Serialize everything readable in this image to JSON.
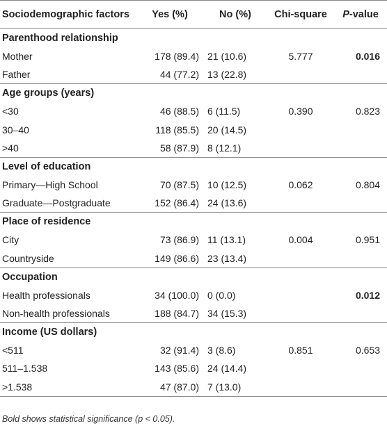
{
  "header": {
    "factor": "Sociodemographic factors",
    "yes": "Yes (%)",
    "no": "No (%)",
    "chi": "Chi-square",
    "p_letter": "P",
    "p_rest": "-value"
  },
  "groups": {
    "parenthood": {
      "title": "Parenthood relationship",
      "rows": [
        {
          "label": "Mother",
          "yes": "178 (89.4)",
          "no": "21 (10.6)",
          "chi": "5.777",
          "p": "0.016"
        },
        {
          "label": "Father",
          "yes": "44 (77.2)",
          "no": "13 (22.8)"
        }
      ]
    },
    "age": {
      "title": "Age groups (years)",
      "rows": [
        {
          "label": "<30",
          "yes": "46 (88.5)",
          "no": "6 (11.5)",
          "chi": "0.390",
          "p": "0.823"
        },
        {
          "label": "30–40",
          "yes": "118 (85.5)",
          "no": "20 (14.5)"
        },
        {
          "label": ">40",
          "yes": "58 (87.9)",
          "no": "8 (12.1)"
        }
      ]
    },
    "education": {
      "title": "Level of education",
      "rows": [
        {
          "label": "Primary—High School",
          "yes": "70 (87.5)",
          "no": "10 (12.5)",
          "chi": "0.062",
          "p": "0.804"
        },
        {
          "label": "Graduate—Postgraduate",
          "yes": "152 (86.4)",
          "no": "24 (13.6)"
        }
      ]
    },
    "residence": {
      "title": "Place of residence",
      "rows": [
        {
          "label": "City",
          "yes": "73 (86.9)",
          "no": "11 (13.1)",
          "chi": "0.004",
          "p": "0.951"
        },
        {
          "label": "Countryside",
          "yes": "149 (86.6)",
          "no": "23 (13.4)"
        }
      ]
    },
    "occupation": {
      "title": "Occupation",
      "rows": [
        {
          "label": "Health professionals",
          "yes": "34 (100.0)",
          "no": "0 (0.0)",
          "p": "0.012"
        },
        {
          "label": "Non-health professionals",
          "yes": "188 (84.7)",
          "no": "34 (15.3)"
        }
      ]
    },
    "income": {
      "title": "Income (US dollars)",
      "rows": [
        {
          "label": "<511",
          "yes": "32 (91.4)",
          "no": "3 (8.6)",
          "chi": "0.851",
          "p": "0.653"
        },
        {
          "label": "511–1.538",
          "yes": "143 (85.6)",
          "no": "24 (14.4)"
        },
        {
          "label": ">1.538",
          "yes": "47 (87.0)",
          "no": "7 (13.0)"
        }
      ]
    }
  },
  "footnote": "Bold shows statistical significance (p < 0.05)."
}
